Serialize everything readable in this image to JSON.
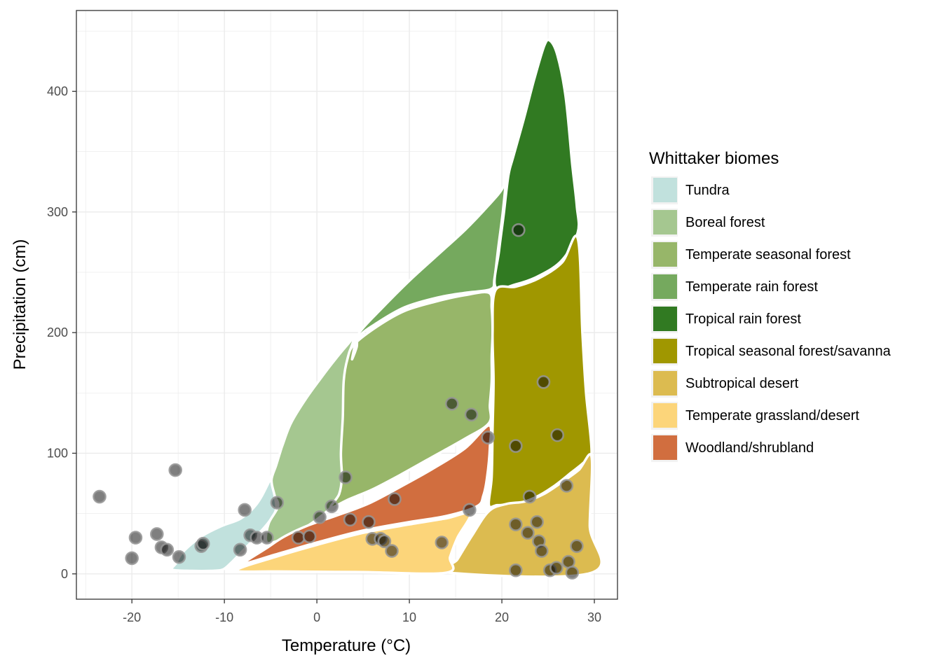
{
  "chart_data": {
    "type": "scatter",
    "xlabel": "Temperature (°C)",
    "ylabel": "Precipitation (cm)",
    "xlim": [
      -26,
      32.5
    ],
    "ylim": [
      -21,
      467
    ],
    "x_ticks": [
      -20,
      -10,
      0,
      10,
      20,
      30
    ],
    "y_ticks": [
      0,
      100,
      200,
      300,
      400
    ],
    "grid": true,
    "legend": {
      "title": "Whittaker biomes",
      "position": "right",
      "entries": [
        {
          "label": "Tundra",
          "color": "#C1E1DD"
        },
        {
          "label": "Boreal forest",
          "color": "#A5C790"
        },
        {
          "label": "Temperate seasonal forest",
          "color": "#97B669"
        },
        {
          "label": "Temperate rain forest",
          "color": "#75A95E"
        },
        {
          "label": "Tropical rain forest",
          "color": "#317A22"
        },
        {
          "label": "Tropical seasonal forest/savanna",
          "color": "#A09700"
        },
        {
          "label": "Subtropical desert",
          "color": "#DCBB50"
        },
        {
          "label": "Temperate grassland/desert",
          "color": "#FCD57A"
        },
        {
          "label": "Woodland/shrubland",
          "color": "#D16E3F"
        }
      ]
    },
    "biomes": [
      {
        "name": "Tundra",
        "color": "#C1E1DD",
        "polygon": [
          [
            -15.6,
            3.5
          ],
          [
            -13.5,
            2.5
          ],
          [
            -11.5,
            2.5
          ],
          [
            -10.2,
            3.5
          ],
          [
            -9.3,
            9
          ],
          [
            -8.4,
            16
          ],
          [
            -7.4,
            24
          ],
          [
            -6.2,
            34
          ],
          [
            -5.1,
            44
          ],
          [
            -4.4,
            54
          ],
          [
            -4.6,
            66
          ],
          [
            -4.9,
            78
          ],
          [
            -4.3,
            90
          ],
          [
            -3.8,
            100
          ],
          [
            -5.2,
            76
          ],
          [
            -6.5,
            58
          ],
          [
            -8.2,
            46
          ],
          [
            -10.2,
            40
          ],
          [
            -12.5,
            31
          ],
          [
            -14.5,
            18
          ],
          [
            -15.2,
            9
          ]
        ]
      },
      {
        "name": "Boreal forest",
        "color": "#A5C790",
        "polygon": [
          [
            -4.2,
            56
          ],
          [
            -4.6,
            66
          ],
          [
            -4.9,
            78
          ],
          [
            -4.4,
            90
          ],
          [
            -4.0,
            100
          ],
          [
            -3.7,
            107
          ],
          [
            -2.8,
            125
          ],
          [
            -1.2,
            145
          ],
          [
            0.5,
            163
          ],
          [
            2.0,
            178
          ],
          [
            3.3,
            190
          ],
          [
            4.0,
            195
          ],
          [
            3.3,
            178
          ],
          [
            3.0,
            160
          ],
          [
            2.9,
            140
          ],
          [
            2.8,
            110
          ],
          [
            2.7,
            90
          ],
          [
            2.9,
            80
          ],
          [
            2.5,
            66
          ],
          [
            1.5,
            55
          ],
          [
            -0.2,
            44
          ],
          [
            -2.3,
            34
          ],
          [
            -4.8,
            26
          ],
          [
            -5.5,
            28
          ],
          [
            -5.2,
            42
          ]
        ]
      },
      {
        "name": "Temperate seasonal forest",
        "color": "#97B669",
        "polygon": [
          [
            1.5,
            55
          ],
          [
            2.4,
            66
          ],
          [
            2.7,
            80
          ],
          [
            2.6,
            100
          ],
          [
            2.8,
            130
          ],
          [
            2.9,
            160
          ],
          [
            3.3,
            178
          ],
          [
            4.0,
            190
          ],
          [
            6.5,
            205
          ],
          [
            9.5,
            218
          ],
          [
            13,
            226
          ],
          [
            16,
            231
          ],
          [
            18.6,
            233
          ],
          [
            18.9,
            220
          ],
          [
            19.0,
            200
          ],
          [
            18.9,
            180
          ],
          [
            18.9,
            160
          ],
          [
            18.7,
            140
          ],
          [
            18.6,
            125
          ],
          [
            16,
            112
          ],
          [
            12.5,
            97
          ],
          [
            9,
            82
          ],
          [
            6,
            70
          ],
          [
            3.5,
            62
          ]
        ]
      },
      {
        "name": "Temperate rain forest",
        "color": "#75A95E",
        "polygon": [
          [
            3.8,
            178
          ],
          [
            4.3,
            188
          ],
          [
            4.6,
            200
          ],
          [
            7,
            220
          ],
          [
            10,
            243
          ],
          [
            13,
            264
          ],
          [
            16,
            285
          ],
          [
            18.5,
            305
          ],
          [
            20.1,
            320
          ],
          [
            20.5,
            333
          ],
          [
            20.1,
            300
          ],
          [
            19.6,
            270
          ],
          [
            19.2,
            245
          ],
          [
            18.8,
            236
          ],
          [
            16,
            233
          ],
          [
            13,
            229
          ],
          [
            9.5,
            221
          ],
          [
            6.5,
            208
          ],
          [
            4.5,
            196
          ]
        ]
      },
      {
        "name": "Tropical rain forest",
        "color": "#317A22",
        "polygon": [
          [
            19.3,
            238
          ],
          [
            19.7,
            268
          ],
          [
            20.2,
            298
          ],
          [
            20.7,
            330
          ],
          [
            21.2,
            345
          ],
          [
            22.3,
            375
          ],
          [
            23.5,
            410
          ],
          [
            24.6,
            438
          ],
          [
            25.2,
            442
          ],
          [
            26.0,
            430
          ],
          [
            26.9,
            395
          ],
          [
            27.6,
            340
          ],
          [
            28.1,
            305
          ],
          [
            28.2,
            283
          ],
          [
            26.5,
            260
          ],
          [
            24.0,
            247
          ],
          [
            21.5,
            240
          ]
        ]
      },
      {
        "name": "Tropical seasonal forest/savanna",
        "color": "#A09700",
        "polygon": [
          [
            19.3,
            235
          ],
          [
            21.5,
            238
          ],
          [
            24,
            245
          ],
          [
            26.5,
            258
          ],
          [
            28.2,
            278
          ],
          [
            28.7,
            200
          ],
          [
            29.1,
            150
          ],
          [
            29.7,
            100
          ],
          [
            28.8,
            92
          ],
          [
            27.5,
            84
          ],
          [
            25.5,
            72
          ],
          [
            23.5,
            63
          ],
          [
            21.5,
            58
          ],
          [
            19.5,
            57
          ],
          [
            18.6,
            57
          ],
          [
            18.9,
            80
          ],
          [
            19,
            120
          ],
          [
            19.1,
            160
          ],
          [
            19.0,
            200
          ]
        ]
      },
      {
        "name": "Subtropical desert",
        "color": "#DCBB50",
        "polygon": [
          [
            14.3,
            1
          ],
          [
            15.2,
            12
          ],
          [
            16.8,
            32
          ],
          [
            18.6,
            52
          ],
          [
            20.5,
            58
          ],
          [
            22.5,
            60
          ],
          [
            24.5,
            66
          ],
          [
            26.5,
            76
          ],
          [
            28.3,
            86
          ],
          [
            29.7,
            97
          ],
          [
            29.5,
            40
          ],
          [
            29.7,
            1
          ]
        ]
      },
      {
        "name": "Temperate grassland/desert",
        "color": "#FCD57A",
        "polygon": [
          [
            -8.6,
            3
          ],
          [
            -4.5,
            14
          ],
          [
            0,
            24
          ],
          [
            5,
            34
          ],
          [
            10,
            41
          ],
          [
            14,
            46
          ],
          [
            16.6,
            50
          ],
          [
            15.2,
            30
          ],
          [
            14.4,
            14
          ],
          [
            14.0,
            1
          ],
          [
            5,
            1.5
          ],
          [
            -4,
            2
          ]
        ]
      },
      {
        "name": "Woodland/shrubland",
        "color": "#D16E3F",
        "polygon": [
          [
            -7.8,
            9
          ],
          [
            -5.5,
            21
          ],
          [
            -3.5,
            31
          ],
          [
            -1,
            40
          ],
          [
            2,
            48
          ],
          [
            5.5,
            58
          ],
          [
            9,
            72
          ],
          [
            12.5,
            87
          ],
          [
            16,
            104
          ],
          [
            18.6,
            123
          ],
          [
            18.7,
            105
          ],
          [
            18.4,
            80
          ],
          [
            18,
            65
          ],
          [
            17.3,
            56
          ],
          [
            14,
            48
          ],
          [
            10,
            43
          ],
          [
            5,
            36
          ],
          [
            0,
            26
          ],
          [
            -4.5,
            16
          ]
        ]
      }
    ],
    "points": [
      [
        -23.5,
        64
      ],
      [
        -20,
        13
      ],
      [
        -19.6,
        30
      ],
      [
        -17.3,
        33
      ],
      [
        -16.8,
        22
      ],
      [
        -16.2,
        20
      ],
      [
        -15.3,
        86
      ],
      [
        -14.9,
        14
      ],
      [
        -12.5,
        23
      ],
      [
        -12.3,
        25
      ],
      [
        -8.3,
        20
      ],
      [
        -7.8,
        53
      ],
      [
        -7.2,
        32
      ],
      [
        -6.5,
        30
      ],
      [
        -5.4,
        30
      ],
      [
        -4.3,
        59
      ],
      [
        -2,
        30
      ],
      [
        -0.8,
        31
      ],
      [
        0.3,
        47
      ],
      [
        1.6,
        56
      ],
      [
        3.1,
        80
      ],
      [
        3.6,
        45
      ],
      [
        5.6,
        43
      ],
      [
        6,
        29
      ],
      [
        6.9,
        29
      ],
      [
        7.3,
        27
      ],
      [
        8.1,
        19
      ],
      [
        8.4,
        62
      ],
      [
        13.5,
        26
      ],
      [
        14.6,
        141
      ],
      [
        16.5,
        53
      ],
      [
        16.7,
        132
      ],
      [
        18.5,
        113
      ],
      [
        21.5,
        3
      ],
      [
        21.5,
        41
      ],
      [
        21.5,
        106
      ],
      [
        21.8,
        285
      ],
      [
        22.8,
        34
      ],
      [
        23,
        64
      ],
      [
        23.8,
        43
      ],
      [
        24,
        27
      ],
      [
        24.3,
        19
      ],
      [
        24.5,
        159
      ],
      [
        25.2,
        3
      ],
      [
        25.9,
        5
      ],
      [
        26,
        115
      ],
      [
        27,
        73
      ],
      [
        27.2,
        10
      ],
      [
        27.6,
        1
      ],
      [
        28.1,
        23
      ]
    ]
  }
}
